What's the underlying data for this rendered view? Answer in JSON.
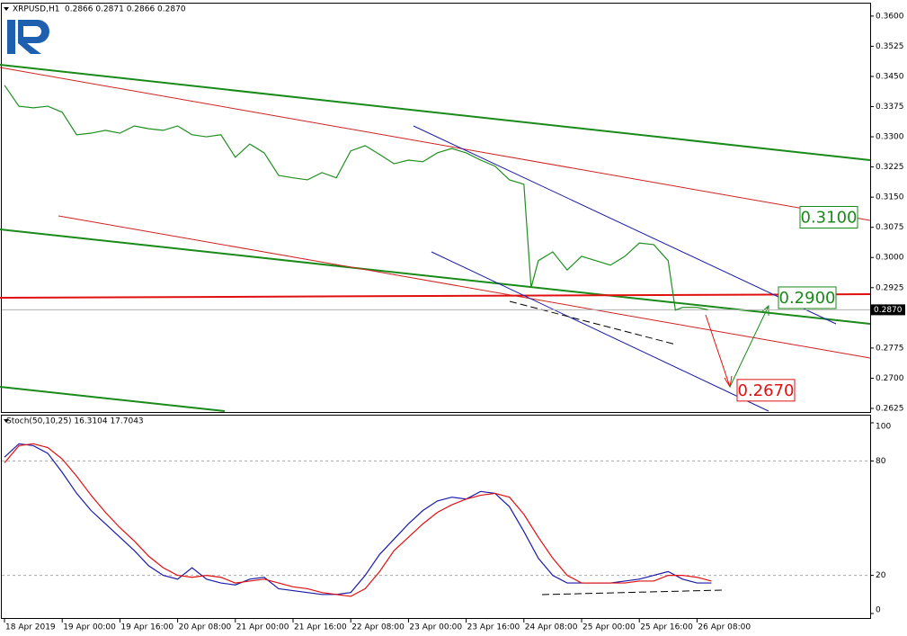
{
  "chart_data": [
    {
      "type": "line",
      "title": "XRPUSD,H1",
      "subtitle": "0.2866 0.2871 0.2866 0.2870",
      "x": [
        0,
        4,
        8,
        12,
        16,
        20,
        24,
        28,
        32,
        36,
        40,
        44,
        48,
        52,
        56,
        60,
        64,
        68,
        72,
        76,
        80,
        84,
        88,
        92,
        96,
        100,
        104,
        108,
        112,
        116,
        120,
        124,
        128,
        132,
        136,
        140,
        144,
        146,
        148,
        152,
        156,
        160,
        164,
        168,
        172,
        176,
        180,
        184,
        186,
        188,
        192,
        195
      ],
      "series": [
        {
          "name": "Close",
          "color": "#1f8f1f",
          "values": [
            0.3428,
            0.3376,
            0.3372,
            0.3376,
            0.3361,
            0.3305,
            0.3309,
            0.3316,
            0.3309,
            0.3327,
            0.332,
            0.3316,
            0.3327,
            0.3305,
            0.33,
            0.3305,
            0.3249,
            0.3282,
            0.326,
            0.3204,
            0.3198,
            0.3193,
            0.3211,
            0.3198,
            0.3265,
            0.3278,
            0.3256,
            0.3233,
            0.3242,
            0.3238,
            0.326,
            0.3271,
            0.326,
            0.3242,
            0.3227,
            0.3193,
            0.3182,
            0.2925,
            0.2992,
            0.3014,
            0.2969,
            0.3003,
            0.2992,
            0.2981,
            0.3003,
            0.3036,
            0.3032,
            0.2992,
            0.2869,
            0.2876,
            0.2876,
            0.287
          ]
        }
      ],
      "xlim": [
        -0.75,
        240
      ],
      "xticks": [
        {
          "value": 0,
          "label": "18 Apr 2019"
        },
        {
          "value": 16,
          "label": "19 Apr 00:00"
        },
        {
          "value": 32,
          "label": "19 Apr 16:00"
        },
        {
          "value": 48,
          "label": "20 Apr 08:00"
        },
        {
          "value": 64,
          "label": "21 Apr 00:00"
        },
        {
          "value": 80,
          "label": "21 Apr 16:00"
        },
        {
          "value": 96,
          "label": "22 Apr 08:00"
        },
        {
          "value": 112,
          "label": "23 Apr 00:00"
        },
        {
          "value": 128,
          "label": "23 Apr 16:00"
        },
        {
          "value": 144,
          "label": "24 Apr 08:00"
        },
        {
          "value": 160,
          "label": "25 Apr 00:00"
        },
        {
          "value": 176,
          "label": "25 Apr 16:00"
        },
        {
          "value": 192,
          "label": "26 Apr 08:00"
        }
      ],
      "ylim": [
        0.2616,
        0.3631
      ],
      "yticks": [
        {
          "value": 0.36,
          "label": "0.3600"
        },
        {
          "value": 0.3525,
          "label": "0.3525"
        },
        {
          "value": 0.345,
          "label": "0.3450"
        },
        {
          "value": 0.3375,
          "label": "0.3375"
        },
        {
          "value": 0.33,
          "label": "0.3300"
        },
        {
          "value": 0.3225,
          "label": "0.3225"
        },
        {
          "value": 0.315,
          "label": "0.3150"
        },
        {
          "value": 0.3075,
          "label": "0.3075"
        },
        {
          "value": 0.3,
          "label": "0.3000"
        },
        {
          "value": 0.2925,
          "label": "0.2925"
        },
        {
          "value": 0.2775,
          "label": "0.2775"
        },
        {
          "value": 0.27,
          "label": "0.2700"
        },
        {
          "value": 0.2625,
          "label": "0.2625"
        }
      ],
      "last_price": {
        "value": 0.287,
        "label": "0.2870"
      },
      "annotations": [
        {
          "value": 0.31,
          "label": "0.3100",
          "color": "#1a8a1a"
        },
        {
          "value": 0.29,
          "label": "0.2900",
          "color": "#1a8a1a"
        },
        {
          "value": 0.267,
          "label": "0.2670",
          "color": "#e01010"
        }
      ]
    },
    {
      "type": "line",
      "title": "Stoch(50,10,25) 16.3104 17.7043",
      "x": [
        0,
        4,
        8,
        12,
        16,
        20,
        24,
        28,
        32,
        36,
        40,
        44,
        48,
        52,
        56,
        60,
        64,
        68,
        72,
        76,
        80,
        84,
        88,
        92,
        96,
        100,
        104,
        108,
        112,
        116,
        120,
        124,
        128,
        132,
        136,
        140,
        144,
        148,
        152,
        156,
        160,
        164,
        168,
        172,
        176,
        180,
        184,
        188,
        192,
        196
      ],
      "series": [
        {
          "name": "Main",
          "color": "#1a1aa8",
          "values": [
            82,
            89,
            88,
            84,
            74,
            63,
            54,
            47,
            40,
            33,
            25,
            20,
            18,
            24,
            18,
            16,
            15,
            18,
            19,
            13,
            12,
            11,
            10,
            10,
            11,
            20,
            31,
            39,
            47,
            54,
            59,
            61,
            60,
            64,
            63,
            56,
            43,
            29,
            20,
            16,
            16,
            16,
            16,
            17,
            18,
            20,
            22,
            18,
            16,
            16
          ]
        },
        {
          "name": "Signal",
          "color": "#e01010",
          "values": [
            79,
            88,
            89,
            87,
            81,
            72,
            62,
            53,
            45,
            38,
            30,
            24,
            20,
            19,
            20,
            19,
            16,
            17,
            18,
            16,
            14,
            13,
            11,
            10,
            9,
            13,
            22,
            33,
            40,
            47,
            53,
            57,
            60,
            62,
            63,
            61,
            52,
            40,
            29,
            20,
            16,
            16,
            16,
            16,
            17,
            17,
            20,
            20,
            19,
            17
          ]
        }
      ],
      "xlim": [
        -0.75,
        240
      ],
      "ylim": [
        0,
        100
      ],
      "yticks": [
        100,
        80,
        20,
        0
      ]
    }
  ]
}
